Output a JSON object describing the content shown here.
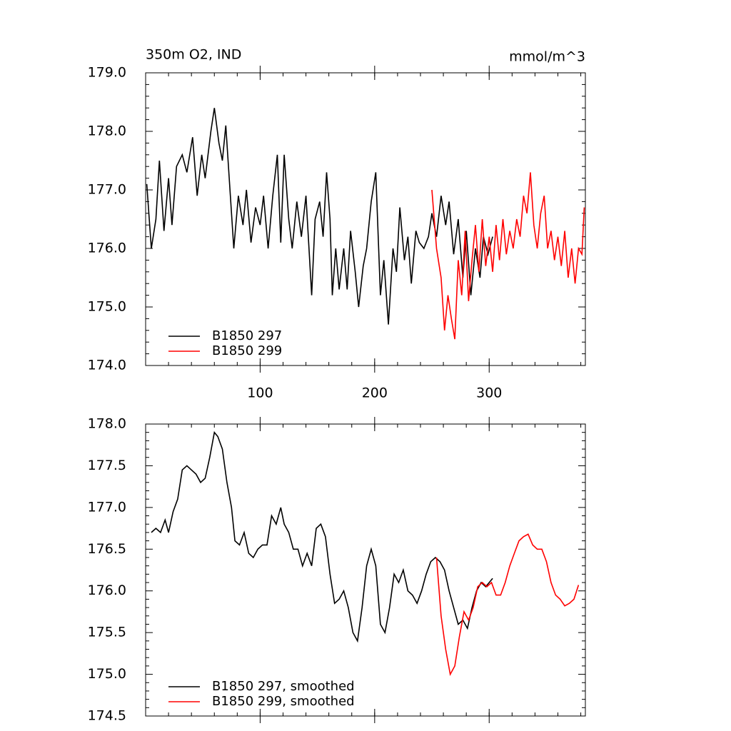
{
  "chart_data": [
    {
      "type": "line",
      "title": "350m O2, IND",
      "subtitle": "mmol/m^3",
      "legend": "lower left",
      "xlim": [
        0,
        384
      ],
      "xticks": [
        100,
        200,
        300
      ],
      "show_xtick_labels": true,
      "ylim": [
        174,
        179
      ],
      "yticks": [
        {
          "value": 174,
          "label": "174.0"
        },
        {
          "value": 175,
          "label": "175.0"
        },
        {
          "value": 176,
          "label": "176.0"
        },
        {
          "value": 177,
          "label": "177.0"
        },
        {
          "value": 178,
          "label": "178.0"
        },
        {
          "value": 179,
          "label": "179.0"
        }
      ],
      "series": [
        {
          "name": "B1850 297",
          "color": "#000000",
          "x": [
            1,
            5,
            9,
            12,
            16,
            20,
            23,
            27,
            32,
            36,
            41,
            45,
            49,
            52,
            57,
            60,
            64,
            67,
            70,
            74,
            77,
            81,
            85,
            88,
            92,
            96,
            100,
            103,
            107,
            111,
            115,
            118,
            121,
            125,
            128,
            132,
            136,
            140,
            145,
            148,
            152,
            155,
            158,
            161,
            163,
            166,
            169,
            173,
            176,
            179,
            183,
            186,
            190,
            193,
            197,
            201,
            205,
            208,
            212,
            216,
            219,
            222,
            226,
            229,
            232,
            236,
            239,
            243,
            247,
            250,
            254,
            258,
            262,
            265,
            269,
            273,
            277,
            280,
            284,
            288,
            292,
            295,
            299,
            303
          ],
          "values": [
            177.1,
            176.0,
            176.5,
            177.5,
            176.3,
            177.2,
            176.4,
            177.4,
            177.6,
            177.3,
            177.9,
            176.9,
            177.6,
            177.2,
            178.0,
            178.4,
            177.8,
            177.5,
            178.1,
            176.9,
            176.0,
            176.9,
            176.4,
            177.0,
            176.1,
            176.7,
            176.4,
            176.9,
            176.0,
            176.9,
            177.6,
            176.1,
            177.6,
            176.5,
            176.0,
            176.8,
            176.2,
            176.9,
            175.2,
            176.5,
            176.8,
            176.2,
            177.3,
            176.5,
            175.2,
            176.0,
            175.3,
            176.0,
            175.3,
            176.3,
            175.6,
            175.0,
            175.7,
            176.0,
            176.8,
            177.3,
            175.2,
            175.8,
            174.7,
            176.0,
            175.6,
            176.7,
            175.8,
            176.2,
            175.4,
            176.3,
            176.1,
            176.0,
            176.2,
            176.6,
            176.2,
            176.9,
            176.4,
            176.8,
            175.9,
            176.5,
            175.5,
            176.3,
            175.2,
            176.0,
            175.5,
            176.2,
            175.9,
            176.2
          ]
        },
        {
          "name": "B1850 299",
          "color": "#ff0000",
          "x": [
            250,
            254,
            258,
            261,
            264,
            267,
            270,
            273,
            276,
            279,
            282,
            285,
            288,
            291,
            294,
            297,
            300,
            303,
            306,
            309,
            312,
            315,
            318,
            321,
            324,
            327,
            330,
            333,
            336,
            339,
            342,
            345,
            348,
            351,
            354,
            357,
            360,
            363,
            366,
            369,
            372,
            375,
            378,
            381,
            383
          ],
          "values": [
            177.0,
            176.0,
            175.5,
            174.6,
            175.2,
            174.8,
            174.45,
            175.8,
            175.2,
            176.3,
            175.1,
            175.8,
            176.4,
            175.6,
            176.5,
            175.7,
            176.2,
            175.6,
            176.4,
            175.8,
            176.5,
            175.9,
            176.3,
            176.0,
            176.5,
            176.2,
            176.9,
            176.6,
            177.3,
            176.4,
            176.0,
            176.6,
            176.9,
            176.0,
            176.3,
            175.8,
            176.2,
            175.7,
            176.3,
            175.5,
            176.0,
            175.4,
            176.0,
            175.9,
            176.7
          ]
        }
      ]
    },
    {
      "type": "line",
      "legend": "lower left",
      "xlim": [
        0,
        384
      ],
      "xticks": [
        100,
        200,
        300
      ],
      "show_xtick_labels": false,
      "ylim": [
        174.5,
        178
      ],
      "yticks": [
        174.5,
        {
          "value": 175,
          "label": "175.0"
        },
        175.5,
        {
          "value": 176,
          "label": "176.0"
        },
        176.5,
        {
          "value": 177,
          "label": "177.0"
        },
        177.5,
        {
          "value": 178,
          "label": "178.0"
        }
      ],
      "series": [
        {
          "name": "B1850 297, smoothed",
          "color": "#000000",
          "x": [
            5,
            9,
            13,
            17,
            20,
            24,
            28,
            32,
            36,
            40,
            44,
            48,
            52,
            56,
            60,
            63,
            67,
            71,
            75,
            78,
            82,
            86,
            90,
            94,
            98,
            102,
            106,
            110,
            114,
            118,
            121,
            125,
            129,
            133,
            137,
            141,
            145,
            149,
            153,
            157,
            161,
            165,
            169,
            173,
            177,
            181,
            185,
            189,
            193,
            197,
            201,
            205,
            209,
            213,
            217,
            221,
            225,
            229,
            233,
            237,
            241,
            245,
            249,
            253,
            257,
            261,
            265,
            269,
            273,
            277,
            281,
            285,
            289,
            293,
            297,
            303
          ],
          "values": [
            176.7,
            176.75,
            176.7,
            176.85,
            176.7,
            176.95,
            177.1,
            177.45,
            177.5,
            177.45,
            177.4,
            177.3,
            177.35,
            177.6,
            177.9,
            177.85,
            177.7,
            177.3,
            177.0,
            176.6,
            176.55,
            176.7,
            176.45,
            176.4,
            176.5,
            176.55,
            176.55,
            176.9,
            176.8,
            177.0,
            176.8,
            176.7,
            176.5,
            176.5,
            176.3,
            176.45,
            176.3,
            176.75,
            176.8,
            176.65,
            176.2,
            175.85,
            175.9,
            176.0,
            175.8,
            175.5,
            175.4,
            175.8,
            176.3,
            176.5,
            176.3,
            175.6,
            175.5,
            175.8,
            176.2,
            176.1,
            176.25,
            176.0,
            175.95,
            175.85,
            176.0,
            176.2,
            176.35,
            176.4,
            176.35,
            176.25,
            176.0,
            175.8,
            175.6,
            175.65,
            175.55,
            175.8,
            176.0,
            176.1,
            176.05,
            176.15
          ]
        },
        {
          "name": "B1850 299, smoothed",
          "color": "#ff0000",
          "x": [
            254,
            258,
            262,
            266,
            270,
            274,
            278,
            282,
            286,
            290,
            294,
            298,
            302,
            306,
            310,
            314,
            318,
            322,
            326,
            330,
            334,
            338,
            342,
            346,
            350,
            354,
            358,
            362,
            366,
            370,
            374,
            378
          ],
          "values": [
            176.4,
            175.7,
            175.3,
            175.0,
            175.1,
            175.45,
            175.75,
            175.65,
            175.8,
            176.05,
            176.1,
            176.05,
            176.1,
            175.95,
            175.95,
            176.1,
            176.3,
            176.45,
            176.6,
            176.65,
            176.68,
            176.55,
            176.5,
            176.5,
            176.35,
            176.1,
            175.95,
            175.9,
            175.82,
            175.85,
            175.9,
            176.07
          ]
        }
      ]
    }
  ]
}
